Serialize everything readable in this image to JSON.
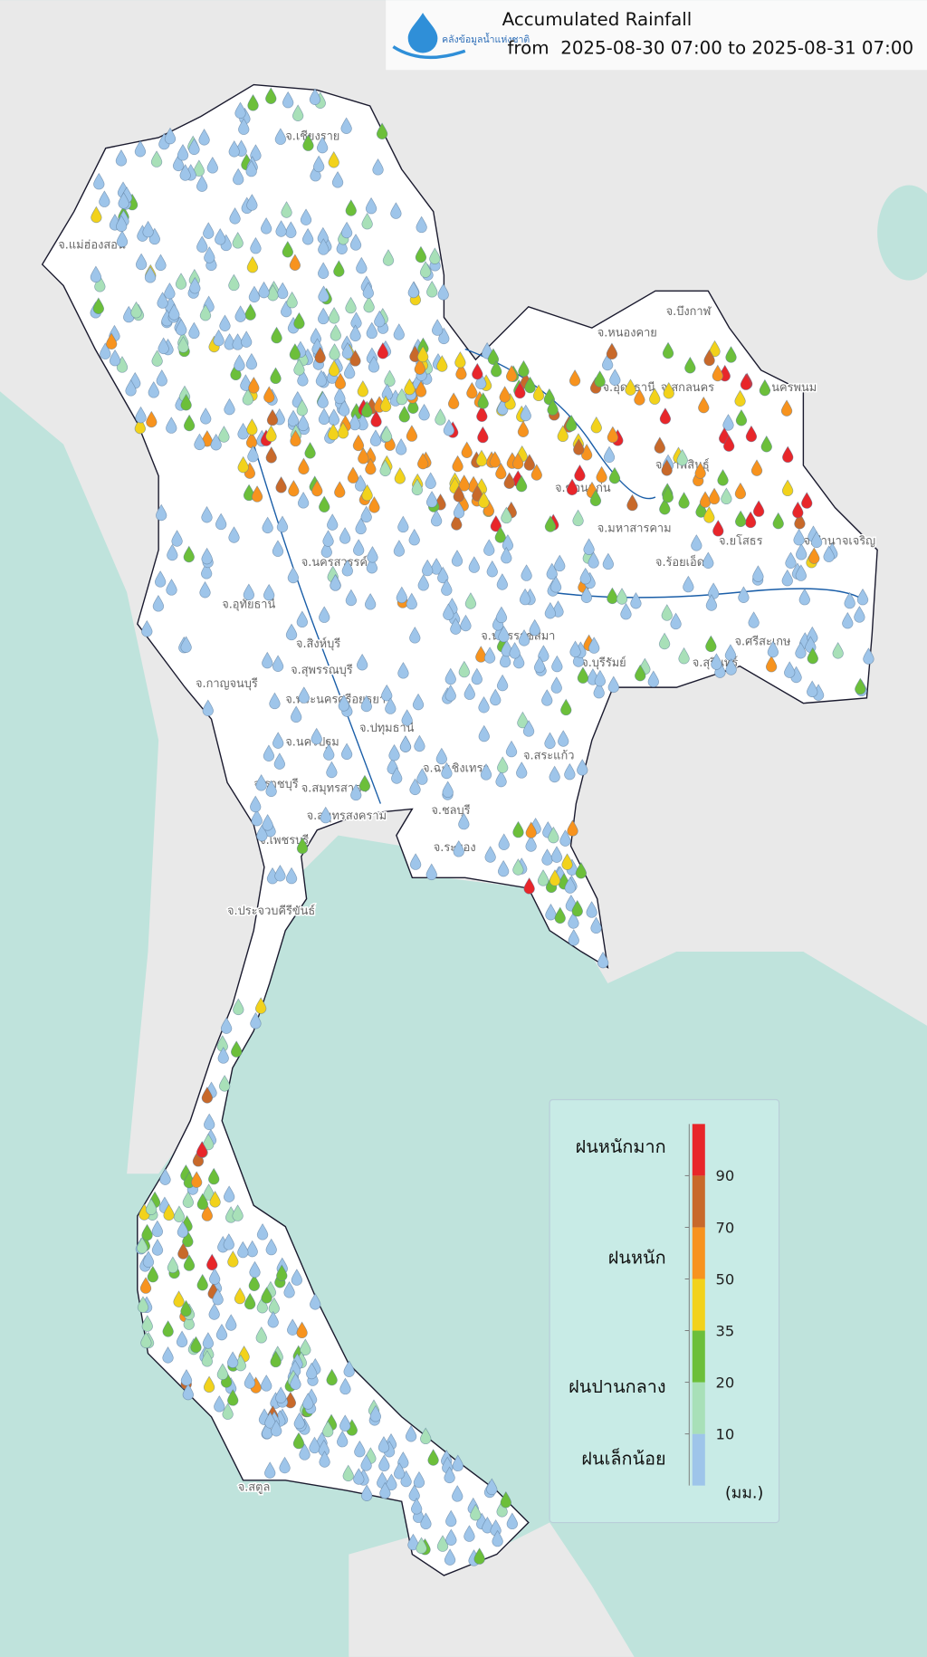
{
  "header": {
    "logo_text": "คลังข้อมูลน้ำแห่งชาติ",
    "title": "Accumulated Rainfall",
    "subtitle": "from  2025-08-30 07:00 to 2025-08-31 07:00"
  },
  "legend": {
    "classes": [
      "ฝนหนักมาก",
      "ฝนหนัก",
      "ฝนปานกลาง",
      "ฝนเล็กน้อย"
    ],
    "ticks": [
      10,
      20,
      35,
      50,
      70,
      90
    ],
    "unit": "(มม.)",
    "colors": [
      "#9ec5ea",
      "#a8e0b8",
      "#6cbf3a",
      "#f2d21b",
      "#f7931e",
      "#c8692a",
      "#e8262a"
    ]
  },
  "province_labels": [
    "จ.เชียงราย",
    "จ.แม่ฮ่องสอน",
    "จ.บึงกาฬ",
    "จ.หนองคาย",
    "จ.อุดรธานี",
    "จ.สกลนคร",
    "จ.นครพนม",
    "จ.กาฬสินธุ์",
    "จ.ขอนแก่น",
    "จ.มหาสารคาม",
    "จ.ยโสธร",
    "จ.ร้อยเอ็ด",
    "จ.อำนาจเจริญ",
    "จ.นครสวรรค์",
    "จ.อุทัยธานี",
    "จ.นครราชสีมา",
    "จ.บุรีรัมย์",
    "จ.สุรินทร์",
    "จ.ศรีสะเกษ",
    "จ.สิงห์บุรี",
    "จ.สุพรรณบุรี",
    "จ.กาญจนบุรี",
    "จ.พระนครศรีอยุธยา",
    "จ.ปทุมธานี",
    "จ.นครปฐม",
    "จ.ฉะเชิงเทรา",
    "จ.สระแก้ว",
    "จ.ชลบุรี",
    "จ.ระยอง",
    "จ.ราชบุรี",
    "จ.สมุทรสาคร",
    "จ.สมุทรสงคราม",
    "จ.เพชรบุรี",
    "จ.ประจวบคีรีขันธ์",
    "จ.สตูล"
  ]
}
